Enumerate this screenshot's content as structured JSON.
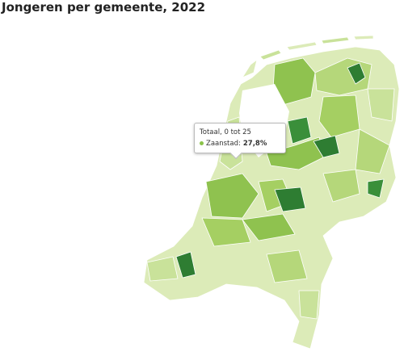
{
  "title": "Jongeren per gemeente, 2022",
  "tooltip": {
    "series": "Totaal, 0 tot 25",
    "municipality": "Zaanstad:",
    "value": "27,8%"
  }
}
